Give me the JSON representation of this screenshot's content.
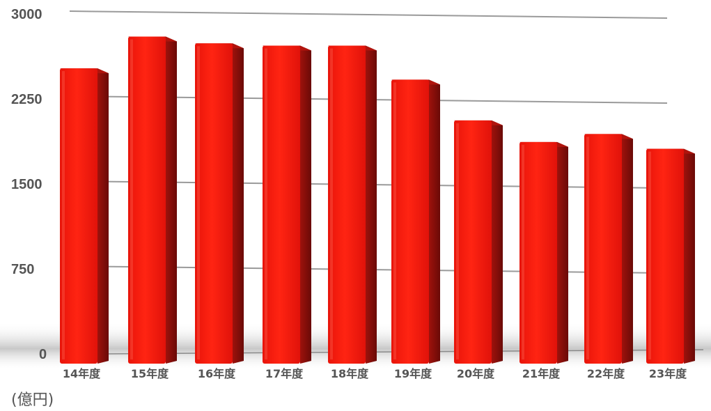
{
  "chart_data": {
    "type": "bar",
    "categories": [
      "14年度",
      "15年度",
      "16年度",
      "17年度",
      "18年度",
      "19年度",
      "20年度",
      "21年度",
      "22年度",
      "23年度"
    ],
    "values": [
      2520,
      2800,
      2740,
      2720,
      2720,
      2420,
      2060,
      1870,
      1940,
      1810
    ],
    "yticks": [
      0,
      750,
      1500,
      2250,
      3000
    ],
    "ylim": [
      0,
      3000
    ],
    "unit_label": "(億円)",
    "title": "",
    "xlabel": "",
    "ylabel": "",
    "grid": true,
    "colors": {
      "bar_front": "#ff1a0a",
      "bar_side": "#8e0f0b",
      "grid": "#9a9a9a",
      "text": "#555555"
    }
  }
}
